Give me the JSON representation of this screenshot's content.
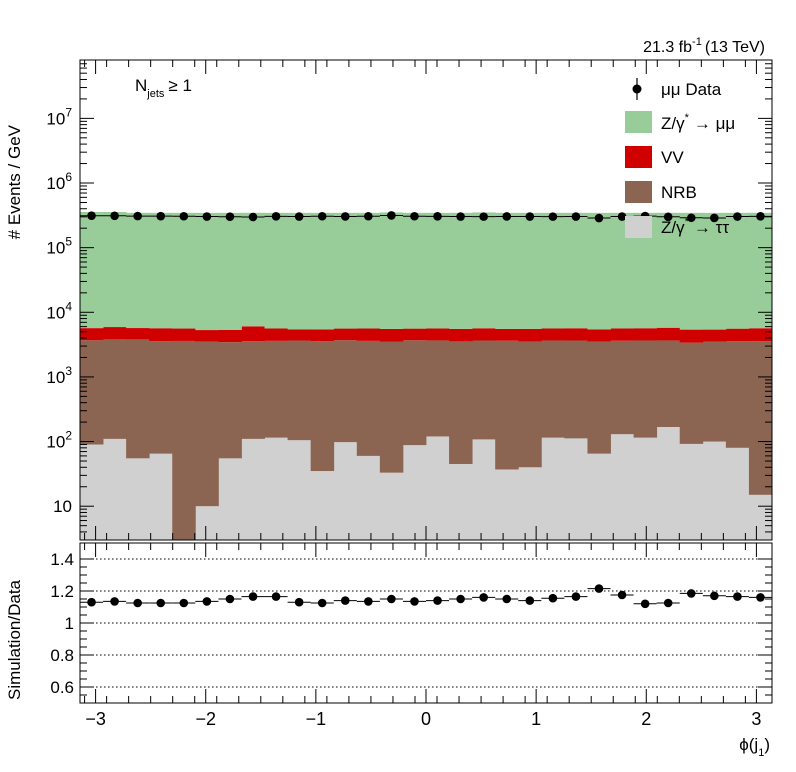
{
  "header": {
    "lumi": "21.3 fb",
    "lumi_sup": "-1",
    "energy": "(13 TeV)",
    "category_main": "N",
    "category_sub": "jets",
    "category_tail": "≥ 1"
  },
  "legend": {
    "data": "μμ Data",
    "zmumu": "Z/γ",
    "zmumu_sup": "*",
    "zmumu_tail": "→ μμ",
    "vv": "VV",
    "nrb": "NRB",
    "ztautau": "Z/γ",
    "ztautau_sup": "*",
    "ztautau_tail": "→ ττ"
  },
  "colors": {
    "zmumu": "#98cc98",
    "vv": "#d10000",
    "nrb": "#8b6452",
    "ztautau": "#d0d0d0",
    "data": "#000000"
  },
  "chart_data": [
    {
      "type": "bar",
      "stacked": true,
      "ylabel": "# Events / GeV",
      "yscale": "log",
      "ylim": [
        3,
        80000000
      ],
      "xlim": [
        -3.1416,
        3.1416
      ],
      "nbins": 30,
      "y_ticks": [
        {
          "v": 10,
          "base": "10",
          "exp": ""
        },
        {
          "v": 100,
          "base": "10",
          "exp": "2"
        },
        {
          "v": 1000,
          "base": "10",
          "exp": "3"
        },
        {
          "v": 10000,
          "base": "10",
          "exp": "4"
        },
        {
          "v": 100000,
          "base": "10",
          "exp": "5"
        },
        {
          "v": 1000000,
          "base": "10",
          "exp": "6"
        },
        {
          "v": 10000000,
          "base": "10",
          "exp": "7"
        }
      ],
      "series": [
        {
          "key": "ztautau",
          "values": [
            90,
            110,
            55,
            65,
            3,
            10,
            55,
            110,
            115,
            105,
            35,
            98,
            60,
            33,
            88,
            120,
            45,
            108,
            37,
            40,
            115,
            112,
            65,
            130,
            115,
            168,
            92,
            100,
            80,
            15
          ]
        },
        {
          "key": "nrb",
          "values": [
            3600,
            3700,
            3750,
            3500,
            3600,
            3500,
            3400,
            3450,
            3500,
            3550,
            3550,
            3600,
            3550,
            3500,
            3600,
            3550,
            3500,
            3550,
            3600,
            3500,
            3550,
            3550,
            3450,
            3500,
            3550,
            3500,
            3300,
            3400,
            3500,
            3550
          ]
        },
        {
          "key": "vv",
          "values": [
            2000,
            2100,
            1900,
            2100,
            2000,
            1800,
            1900,
            2500,
            2000,
            1800,
            1850,
            1900,
            2000,
            2000,
            1900,
            1950,
            2000,
            2000,
            1900,
            2000,
            1950,
            2000,
            1900,
            2000,
            2000,
            2100,
            2000,
            1900,
            2000,
            2100
          ]
        },
        {
          "key": "zmumu",
          "values": [
            350000,
            350000,
            340000,
            340000,
            340000,
            340000,
            340000,
            340000,
            340000,
            340000,
            340000,
            340000,
            340000,
            345000,
            340000,
            340000,
            340000,
            345000,
            340000,
            340000,
            340000,
            340000,
            340000,
            340000,
            340000,
            340000,
            340000,
            340000,
            340000,
            340000
          ]
        }
      ],
      "data_points": [
        312000,
        311000,
        308000,
        307000,
        306000,
        303000,
        301000,
        298000,
        305000,
        303000,
        306000,
        304000,
        306000,
        315000,
        306000,
        305000,
        303000,
        302000,
        304000,
        303000,
        302000,
        303000,
        287000,
        303000,
        308000,
        300000,
        290000,
        288000,
        303000,
        305000
      ]
    },
    {
      "type": "scatter",
      "ylabel": "Simulation/Data",
      "xlabel": "ϕ(j",
      "xlabel_sub": "1",
      "xlabel_tail": ")",
      "ylim": [
        0.5,
        1.5
      ],
      "xlim": [
        -3.1416,
        3.1416
      ],
      "y_ticks": [
        0.6,
        0.8,
        1,
        1.2,
        1.4
      ],
      "y_tick_labels": [
        "0.6",
        "0.8",
        "1",
        "1.2",
        "1.4"
      ],
      "x_ticks": [
        -3,
        -2,
        -1,
        0,
        1,
        2,
        3
      ],
      "x_tick_labels": [
        "−3",
        "−2",
        "−1",
        "0",
        "1",
        "2",
        "3"
      ],
      "values": [
        1.13,
        1.135,
        1.125,
        1.125,
        1.125,
        1.135,
        1.15,
        1.165,
        1.165,
        1.13,
        1.125,
        1.14,
        1.135,
        1.15,
        1.135,
        1.14,
        1.15,
        1.16,
        1.15,
        1.14,
        1.155,
        1.165,
        1.215,
        1.175,
        1.12,
        1.125,
        1.185,
        1.17,
        1.165,
        1.16
      ]
    }
  ]
}
